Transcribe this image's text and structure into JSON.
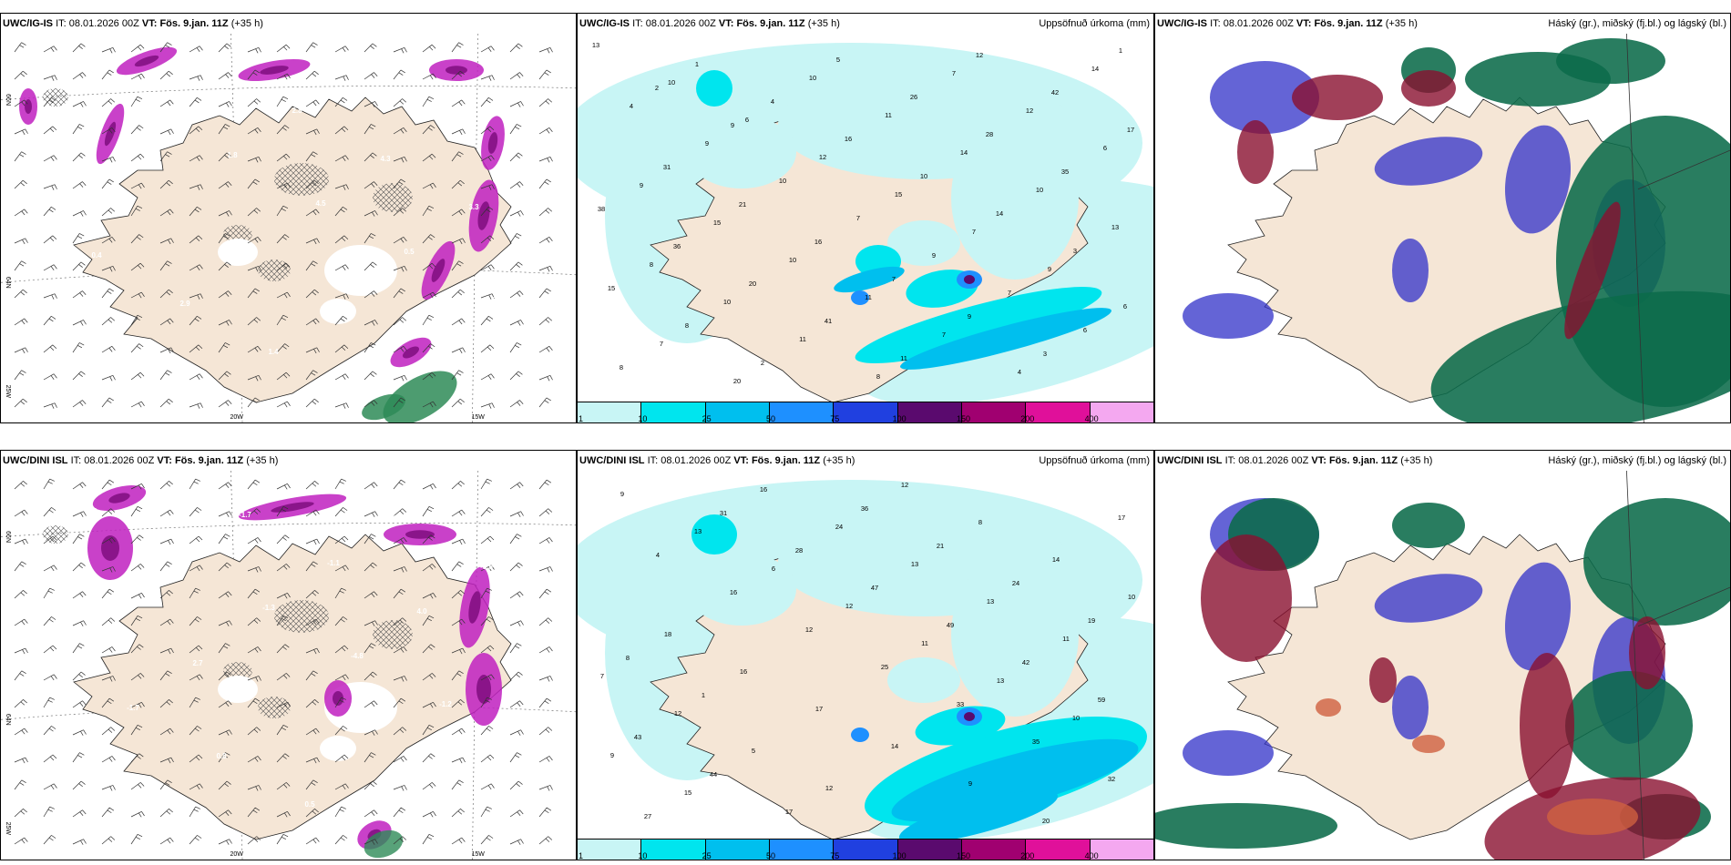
{
  "panels": [
    {
      "id": "p1",
      "model": "UWC/IG-IS",
      "it_label": "IT:",
      "it_value": "08.01.2026 00Z",
      "vt_label": "VT:",
      "vt_value": "Fös. 9.jan. 11Z",
      "lead": "(+35 h)",
      "right_title": "",
      "kind": "wind"
    },
    {
      "id": "p2",
      "model": "UWC/IG-IS",
      "it_label": "IT:",
      "it_value": "08.01.2026 00Z",
      "vt_label": "VT:",
      "vt_value": "Fös. 9.jan. 11Z",
      "lead": "(+35 h)",
      "right_title": "Uppsöfnuð úrkoma (mm)",
      "kind": "precip"
    },
    {
      "id": "p3",
      "model": "UWC/IG-IS",
      "it_label": "IT:",
      "it_value": "08.01.2026 00Z",
      "vt_label": "VT:",
      "vt_value": "Fös. 9.jan. 11Z",
      "lead": "(+35 h)",
      "right_title": "Háský (gr.), miðský (fj.bl.) og lágský (bl.)",
      "kind": "cloud"
    },
    {
      "id": "p4",
      "model": "UWC/DINI ISL",
      "it_label": "IT:",
      "it_value": "08.01.2026 00Z",
      "vt_label": "VT:",
      "vt_value": "Fös. 9.jan. 11Z",
      "lead": "(+35 h)",
      "right_title": "",
      "kind": "wind"
    },
    {
      "id": "p5",
      "model": "UWC/DINI ISL",
      "it_label": "IT:",
      "it_value": "08.01.2026 00Z",
      "vt_label": "VT:",
      "vt_value": "Fös. 9.jan. 11Z",
      "lead": "(+35 h)",
      "right_title": "Uppsöfnuð úrkoma (mm)",
      "kind": "precip"
    },
    {
      "id": "p6",
      "model": "UWC/DINI ISL",
      "it_label": "IT:",
      "it_value": "08.01.2026 00Z",
      "vt_label": "VT:",
      "vt_value": "Fös. 9.jan. 11Z",
      "lead": "(+35 h)",
      "right_title": "Háský (gr.), miðský (fj.bl.) og lágský (bl.)",
      "kind": "cloud"
    }
  ],
  "grid_labels": {
    "lon_20": "20W",
    "lon_15": "15W",
    "lat_66": "66N",
    "lat_64": "64N",
    "lon_25": "25W"
  },
  "colorbar": {
    "labels": [
      "1",
      "10",
      "25",
      "50",
      "75",
      "100",
      "150",
      "200",
      "400"
    ],
    "colors": [
      "#c8f5f5",
      "#00e5ee",
      "#00bfee",
      "#1e90ff",
      "#2040e0",
      "#5a0a6e",
      "#a00070",
      "#e0109a",
      "#f4a8f0"
    ]
  },
  "colors": {
    "land": "#f5e6d6",
    "precip_light": "#c8f5f5",
    "precip_med": "#00e5ee",
    "snow_magenta": "#c020c0",
    "rain_green": "#2e8b57",
    "cloud_high": "#0b6b4a",
    "cloud_mid": "#8a1030",
    "cloud_low": "#3030c8"
  },
  "precip_labels_top": [
    "13",
    "10",
    "6",
    "12",
    "15",
    "7",
    "9",
    "6",
    "7",
    "20",
    "10",
    "11",
    "14",
    "10",
    "13",
    "8",
    "10",
    "11",
    "8",
    "7",
    "12",
    "6",
    "9",
    "15",
    "10",
    "11",
    "7",
    "4",
    "14",
    "4",
    "9",
    "10",
    "7",
    "9",
    "7",
    "6",
    "8",
    "1",
    "4",
    "16",
    "10",
    "14",
    "3",
    "15",
    "8",
    "2",
    "5",
    "26",
    "28",
    "35",
    "38",
    "36",
    "20",
    "41",
    "11",
    "12",
    "42",
    "17",
    "31",
    "21",
    "16",
    "7",
    "9",
    "3",
    "1",
    "2",
    "9"
  ],
  "precip_labels_bottom": [
    "9",
    "13",
    "6",
    "12",
    "11",
    "13",
    "10",
    "9",
    "15",
    "16",
    "24",
    "13",
    "13",
    "11",
    "7",
    "12",
    "5",
    "12",
    "12",
    "8",
    "14",
    "10",
    "18",
    "16",
    "17",
    "14",
    "9",
    "20",
    "17",
    "4",
    "16",
    "12",
    "25",
    "33",
    "35",
    "32",
    "27",
    "31",
    "28",
    "47",
    "49",
    "42",
    "59",
    "43",
    "44",
    "17",
    "36",
    "21",
    "24",
    "19",
    "8",
    "1"
  ],
  "wind_values_top": [
    "2.8",
    "3.0",
    "1.8",
    "4.5",
    "0.5",
    "2.8",
    "4.2",
    "4.0",
    "2.8",
    "4.3",
    "3.3",
    "0.4",
    "2.9",
    "1.4",
    "1.0",
    "3.7"
  ],
  "wind_values_bottom": [
    "1.6",
    "-1.6",
    "-1.3",
    "-4.8",
    "-1.2",
    "-2.6",
    "-1.2",
    "-1.7",
    "-1.1",
    "4.0",
    "-1.5",
    "-1.7",
    "0.8",
    "0.5",
    "2.6",
    "-3.5",
    "1.3",
    "2.7"
  ]
}
